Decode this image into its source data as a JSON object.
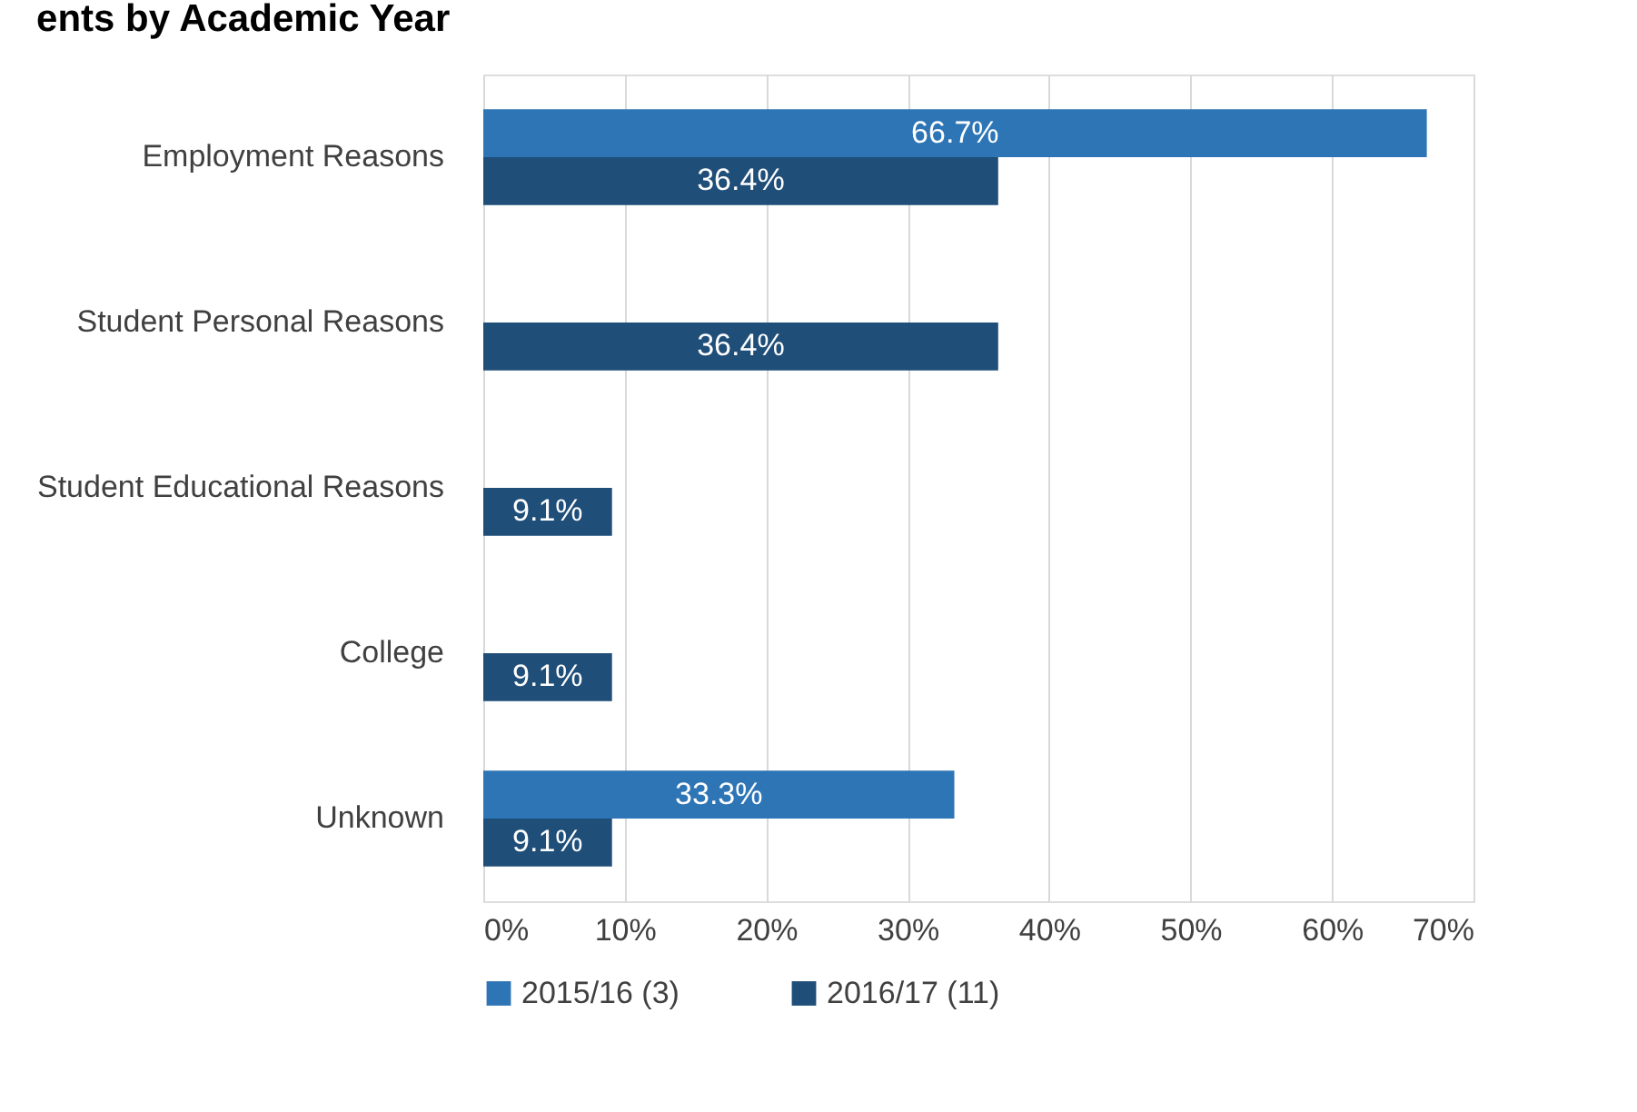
{
  "chart_data": {
    "type": "bar",
    "orientation": "horizontal",
    "title": "ents by Academic Year",
    "categories": [
      "Employment Reasons",
      "Student Personal Reasons",
      "Student Educational Reasons",
      "College",
      "Unknown"
    ],
    "series": [
      {
        "name": "2015/16 (3)",
        "color": "#2e75b6",
        "values": [
          66.7,
          null,
          null,
          null,
          33.3
        ],
        "value_labels": [
          "66.7%",
          null,
          null,
          null,
          "33.3%"
        ]
      },
      {
        "name": "2016/17 (11)",
        "color": "#1f4e79",
        "values": [
          36.4,
          36.4,
          9.1,
          9.1,
          9.1
        ],
        "value_labels": [
          "36.4%",
          "36.4%",
          "9.1%",
          "9.1%",
          "9.1%"
        ]
      }
    ],
    "xlim": [
      0,
      70
    ],
    "xticks": [
      {
        "value": 0,
        "label": "0%"
      },
      {
        "value": 10,
        "label": "10%"
      },
      {
        "value": 20,
        "label": "20%"
      },
      {
        "value": 30,
        "label": "30%"
      },
      {
        "value": 40,
        "label": "40%"
      },
      {
        "value": 50,
        "label": "50%"
      },
      {
        "value": 60,
        "label": "60%"
      },
      {
        "value": 70,
        "label": "70%"
      }
    ],
    "grid": "x",
    "legend": "bottom"
  }
}
